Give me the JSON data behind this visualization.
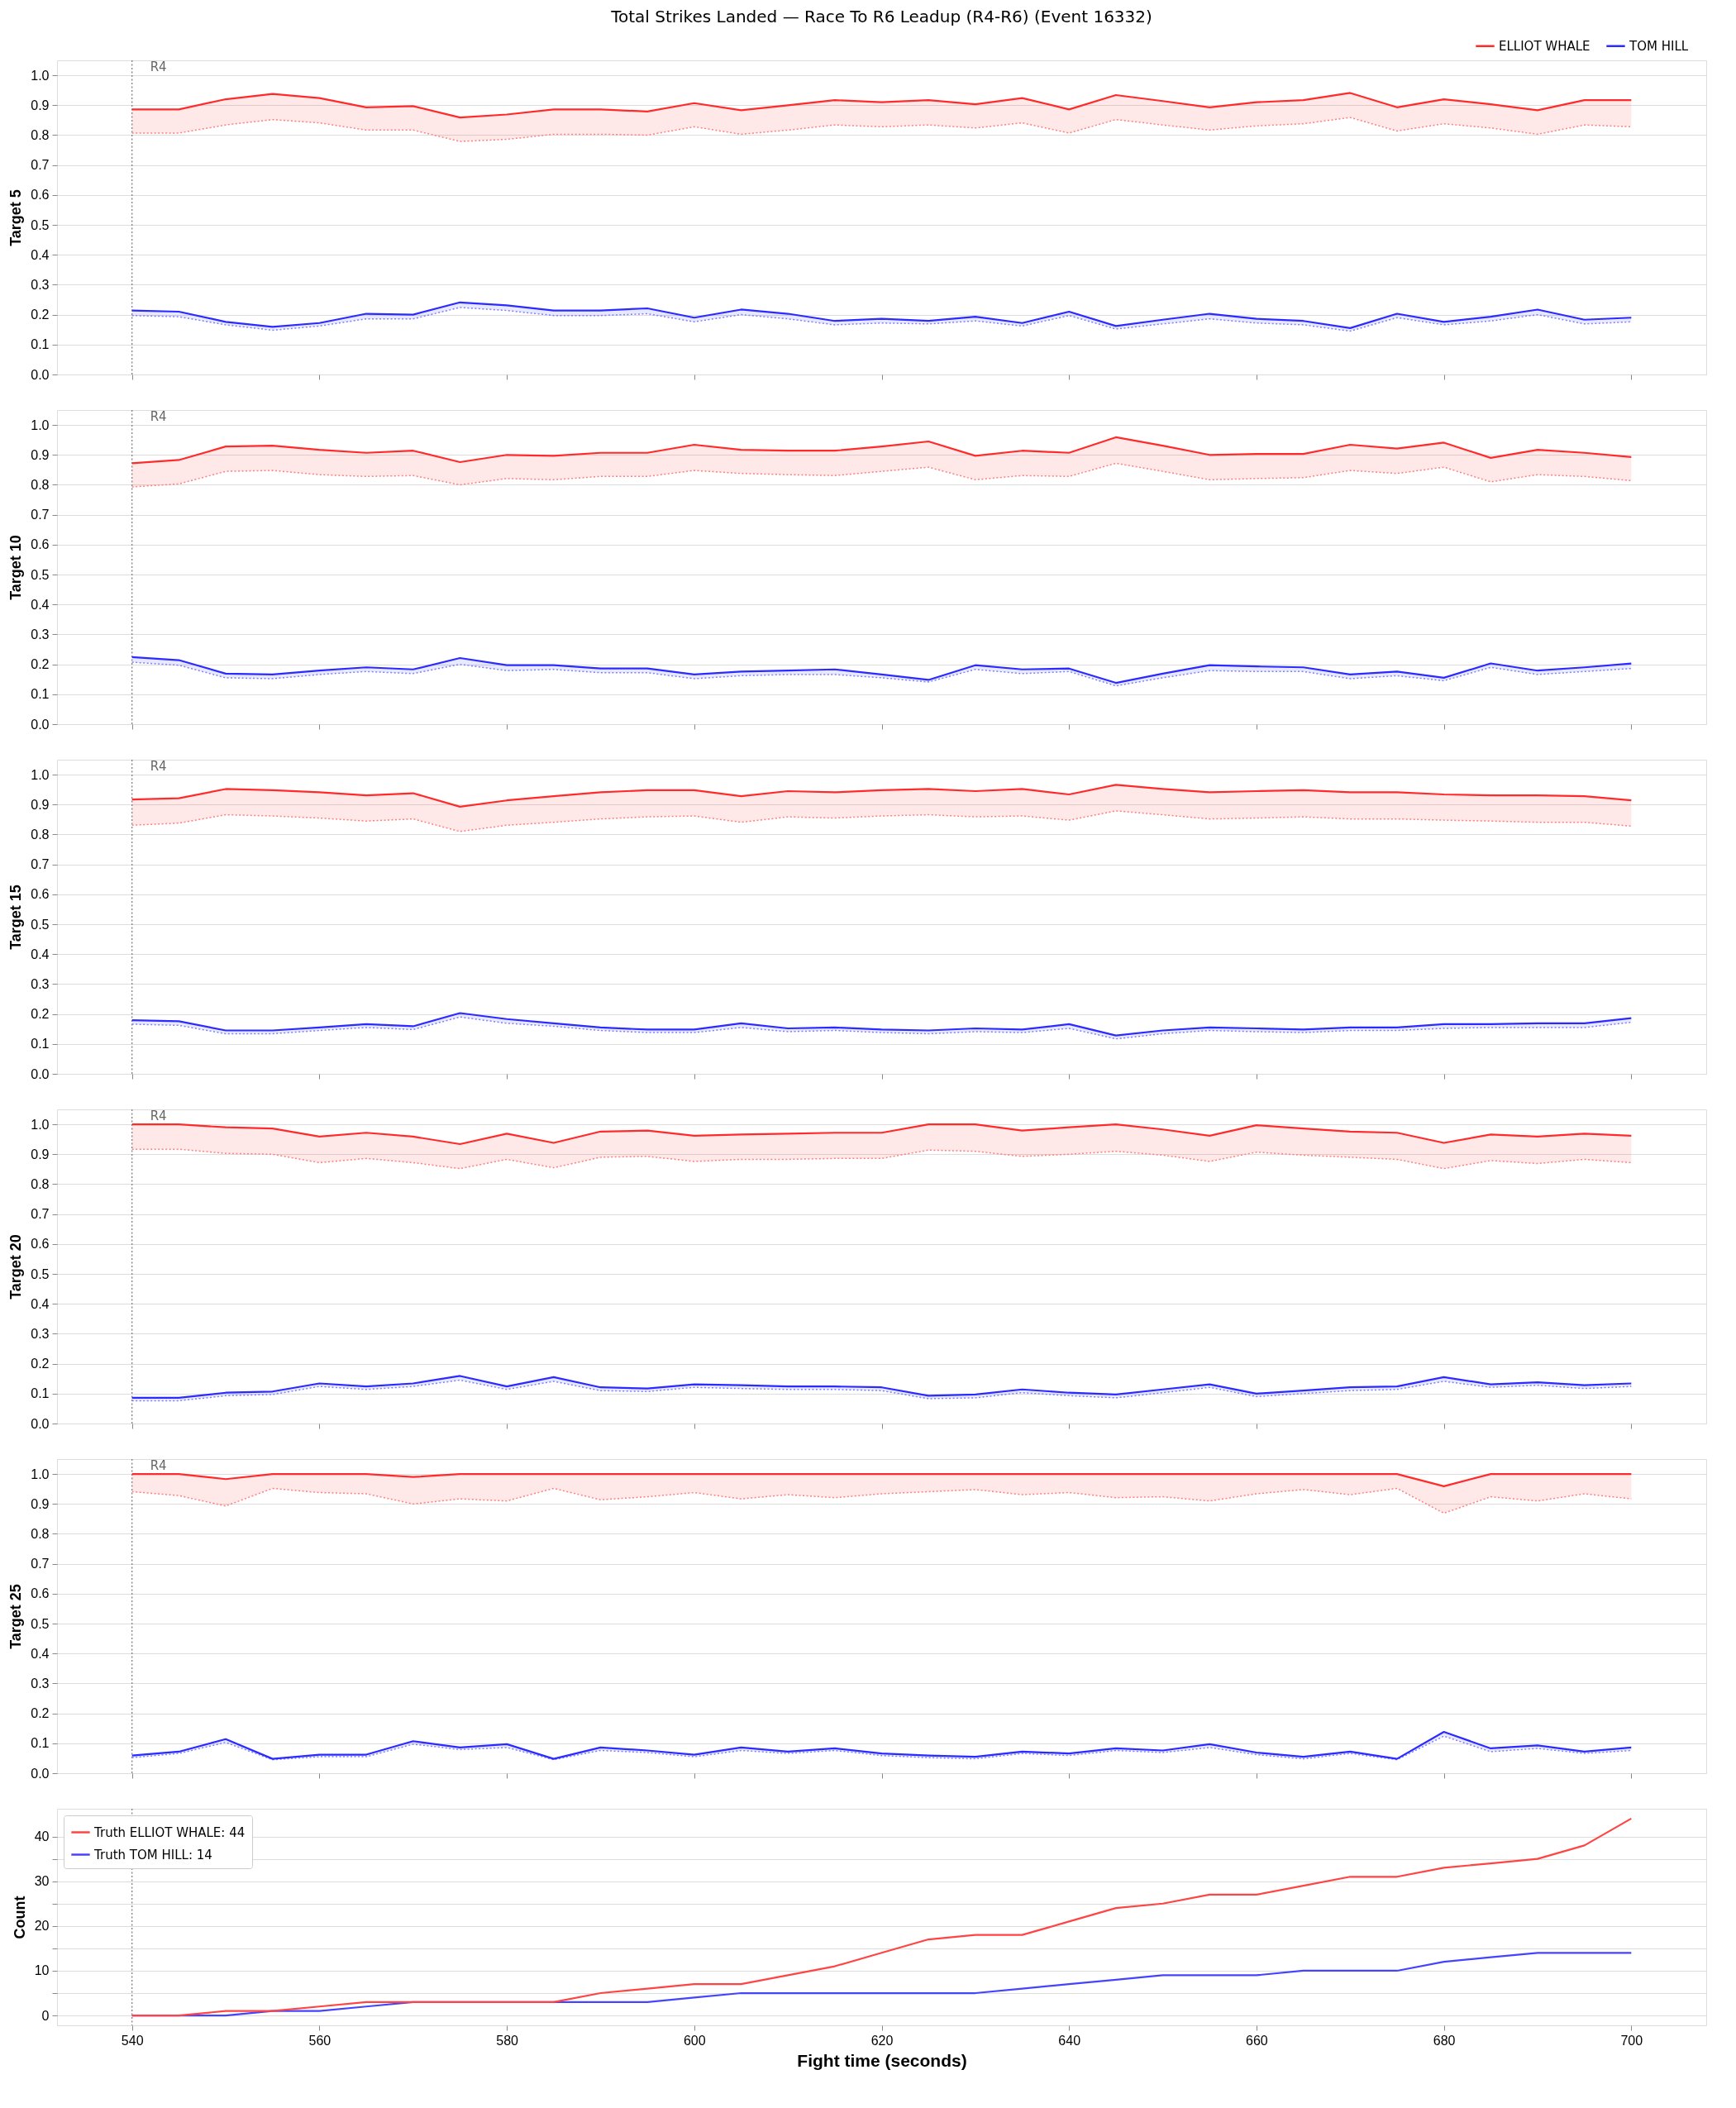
{
  "chart_data": [
    {
      "type": "line",
      "title": "Total Strikes Landed — Race To R6 Leadup (R4-R6) (Event 16332)",
      "ylabel": "Target 5",
      "x": [
        540,
        545,
        550,
        555,
        560,
        565,
        570,
        575,
        580,
        585,
        590,
        595,
        600,
        605,
        610,
        615,
        620,
        625,
        630,
        635,
        640,
        645,
        650,
        655,
        660,
        665,
        670,
        675,
        680,
        685,
        690,
        695,
        700
      ],
      "xlim": [
        532,
        708
      ],
      "xticks": [
        540,
        560,
        580,
        600,
        620,
        640,
        660,
        680,
        700
      ],
      "ylim": [
        0,
        1.05
      ],
      "yticks": [
        {
          "value": 0,
          "label": "0.0"
        },
        0.1,
        0.2,
        0.3,
        0.4,
        0.5,
        0.6,
        0.7,
        0.8,
        0.9,
        {
          "value": 1,
          "label": "1.0"
        }
      ],
      "tick_labels": "y",
      "grid": "y",
      "legend": "top right",
      "line_style": "solid",
      "ref_lines": [
        {
          "axis": "x",
          "value": 540,
          "label": "R4",
          "color": "#808080",
          "line_style": "dotted"
        }
      ],
      "series": [
        {
          "name": "ELLIOT WHALE",
          "color": "#ff2b2b",
          "values": [
            0.886,
            0.886,
            0.92,
            0.938,
            0.924,
            0.893,
            0.897,
            0.859,
            0.869,
            0.886,
            0.886,
            0.879,
            0.907,
            0.883,
            0.9,
            0.917,
            0.91,
            0.917,
            0.903,
            0.924,
            0.886,
            0.934,
            0.914,
            0.893,
            0.91,
            0.917,
            0.941,
            0.893,
            0.92,
            0.903,
            0.883,
            0.917,
            0.917
          ],
          "lower": [
            0.807,
            0.807,
            0.834,
            0.852,
            0.841,
            0.817,
            0.817,
            0.779,
            0.786,
            0.803,
            0.803,
            0.8,
            0.828,
            0.803,
            0.817,
            0.834,
            0.828,
            0.834,
            0.824,
            0.841,
            0.807,
            0.852,
            0.834,
            0.817,
            0.831,
            0.838,
            0.859,
            0.814,
            0.838,
            0.824,
            0.803,
            0.834,
            0.828
          ],
          "upper": [
            0.886,
            0.886,
            0.92,
            0.938,
            0.924,
            0.893,
            0.897,
            0.859,
            0.869,
            0.886,
            0.886,
            0.879,
            0.907,
            0.883,
            0.9,
            0.917,
            0.91,
            0.917,
            0.903,
            0.924,
            0.886,
            0.934,
            0.914,
            0.893,
            0.91,
            0.917,
            0.941,
            0.893,
            0.92,
            0.903,
            0.883,
            0.917,
            0.917
          ]
        },
        {
          "name": "TOM HILL",
          "color": "#2b2bff",
          "values": [
            0.214,
            0.21,
            0.176,
            0.159,
            0.172,
            0.203,
            0.2,
            0.241,
            0.231,
            0.214,
            0.214,
            0.221,
            0.19,
            0.217,
            0.203,
            0.179,
            0.186,
            0.179,
            0.193,
            0.172,
            0.21,
            0.162,
            0.183,
            0.203,
            0.186,
            0.179,
            0.155,
            0.203,
            0.176,
            0.193,
            0.217,
            0.183,
            0.19
          ],
          "lower": [
            0.197,
            0.193,
            0.166,
            0.148,
            0.162,
            0.186,
            0.186,
            0.224,
            0.214,
            0.197,
            0.197,
            0.203,
            0.176,
            0.2,
            0.186,
            0.166,
            0.172,
            0.169,
            0.179,
            0.162,
            0.197,
            0.152,
            0.169,
            0.186,
            0.172,
            0.166,
            0.145,
            0.19,
            0.166,
            0.179,
            0.2,
            0.169,
            0.176
          ],
          "upper": [
            0.214,
            0.21,
            0.176,
            0.159,
            0.172,
            0.203,
            0.2,
            0.241,
            0.231,
            0.214,
            0.214,
            0.221,
            0.19,
            0.217,
            0.203,
            0.179,
            0.186,
            0.179,
            0.193,
            0.172,
            0.21,
            0.162,
            0.183,
            0.203,
            0.186,
            0.179,
            0.155,
            0.203,
            0.176,
            0.193,
            0.217,
            0.183,
            0.19
          ]
        },
        {
          "color": "#ff7f7f",
          "line_style": "dotted",
          "values": [
            0.807,
            0.807,
            0.834,
            0.852,
            0.841,
            0.817,
            0.817,
            0.779,
            0.786,
            0.803,
            0.803,
            0.8,
            0.828,
            0.803,
            0.817,
            0.834,
            0.828,
            0.834,
            0.824,
            0.841,
            0.807,
            0.852,
            0.834,
            0.817,
            0.831,
            0.838,
            0.859,
            0.814,
            0.838,
            0.824,
            0.803,
            0.834,
            0.828
          ]
        },
        {
          "color": "#7f7fff",
          "line_style": "dotted",
          "values": [
            0.197,
            0.193,
            0.166,
            0.148,
            0.162,
            0.186,
            0.186,
            0.224,
            0.214,
            0.197,
            0.197,
            0.203,
            0.176,
            0.2,
            0.186,
            0.166,
            0.172,
            0.169,
            0.179,
            0.162,
            0.197,
            0.152,
            0.169,
            0.186,
            0.172,
            0.166,
            0.145,
            0.19,
            0.166,
            0.179,
            0.2,
            0.169,
            0.176
          ]
        }
      ]
    },
    {
      "type": "line",
      "ylabel": "Target 10",
      "x": [
        540,
        545,
        550,
        555,
        560,
        565,
        570,
        575,
        580,
        585,
        590,
        595,
        600,
        605,
        610,
        615,
        620,
        625,
        630,
        635,
        640,
        645,
        650,
        655,
        660,
        665,
        670,
        675,
        680,
        685,
        690,
        695,
        700
      ],
      "xlim": [
        532,
        708
      ],
      "xticks": [
        540,
        560,
        580,
        600,
        620,
        640,
        660,
        680,
        700
      ],
      "ylim": [
        0,
        1.05
      ],
      "yticks": [
        {
          "value": 0,
          "label": "0.0"
        },
        0.1,
        0.2,
        0.3,
        0.4,
        0.5,
        0.6,
        0.7,
        0.8,
        0.9,
        {
          "value": 1,
          "label": "1.0"
        }
      ],
      "tick_labels": "y",
      "grid": "y",
      "line_style": "solid",
      "ref_lines": [
        {
          "axis": "x",
          "value": 540,
          "label": "R4",
          "color": "#808080",
          "line_style": "dotted"
        }
      ],
      "series": [
        {
          "color": "#ff2b2b",
          "values": [
            0.872,
            0.883,
            0.928,
            0.931,
            0.917,
            0.907,
            0.914,
            0.876,
            0.9,
            0.897,
            0.907,
            0.907,
            0.934,
            0.917,
            0.914,
            0.914,
            0.928,
            0.945,
            0.897,
            0.914,
            0.907,
            0.959,
            0.931,
            0.9,
            0.903,
            0.903,
            0.934,
            0.921,
            0.941,
            0.89,
            0.917,
            0.907,
            0.893
          ],
          "lower": [
            0.793,
            0.803,
            0.845,
            0.848,
            0.834,
            0.828,
            0.831,
            0.8,
            0.821,
            0.817,
            0.828,
            0.828,
            0.848,
            0.838,
            0.834,
            0.831,
            0.845,
            0.859,
            0.817,
            0.831,
            0.828,
            0.872,
            0.845,
            0.817,
            0.821,
            0.824,
            0.848,
            0.838,
            0.859,
            0.81,
            0.834,
            0.828,
            0.814
          ],
          "upper": [
            0.872,
            0.883,
            0.928,
            0.931,
            0.917,
            0.907,
            0.914,
            0.876,
            0.9,
            0.897,
            0.907,
            0.907,
            0.934,
            0.917,
            0.914,
            0.914,
            0.928,
            0.945,
            0.897,
            0.914,
            0.907,
            0.959,
            0.931,
            0.9,
            0.903,
            0.903,
            0.934,
            0.921,
            0.941,
            0.89,
            0.917,
            0.907,
            0.893
          ]
        },
        {
          "color": "#2b2bff",
          "values": [
            0.224,
            0.214,
            0.169,
            0.166,
            0.179,
            0.19,
            0.183,
            0.221,
            0.197,
            0.197,
            0.186,
            0.186,
            0.166,
            0.176,
            0.179,
            0.183,
            0.166,
            0.148,
            0.197,
            0.183,
            0.186,
            0.138,
            0.169,
            0.197,
            0.193,
            0.19,
            0.166,
            0.176,
            0.155,
            0.203,
            0.179,
            0.19,
            0.203
          ],
          "lower": [
            0.207,
            0.197,
            0.155,
            0.152,
            0.166,
            0.176,
            0.169,
            0.2,
            0.179,
            0.183,
            0.172,
            0.172,
            0.152,
            0.162,
            0.166,
            0.166,
            0.155,
            0.141,
            0.183,
            0.169,
            0.176,
            0.128,
            0.155,
            0.179,
            0.176,
            0.176,
            0.152,
            0.162,
            0.145,
            0.19,
            0.166,
            0.176,
            0.186
          ],
          "upper": [
            0.224,
            0.214,
            0.169,
            0.166,
            0.179,
            0.19,
            0.183,
            0.221,
            0.197,
            0.197,
            0.186,
            0.186,
            0.166,
            0.176,
            0.179,
            0.183,
            0.166,
            0.148,
            0.197,
            0.183,
            0.186,
            0.138,
            0.169,
            0.197,
            0.193,
            0.19,
            0.166,
            0.176,
            0.155,
            0.203,
            0.179,
            0.19,
            0.203
          ]
        },
        {
          "color": "#ff7f7f",
          "line_style": "dotted",
          "values": [
            0.793,
            0.803,
            0.845,
            0.848,
            0.834,
            0.828,
            0.831,
            0.8,
            0.821,
            0.817,
            0.828,
            0.828,
            0.848,
            0.838,
            0.834,
            0.831,
            0.845,
            0.859,
            0.817,
            0.831,
            0.828,
            0.872,
            0.845,
            0.817,
            0.821,
            0.824,
            0.848,
            0.838,
            0.859,
            0.81,
            0.834,
            0.828,
            0.814
          ]
        },
        {
          "color": "#7f7fff",
          "line_style": "dotted",
          "values": [
            0.207,
            0.197,
            0.155,
            0.152,
            0.166,
            0.176,
            0.169,
            0.2,
            0.179,
            0.183,
            0.172,
            0.172,
            0.152,
            0.162,
            0.166,
            0.166,
            0.155,
            0.141,
            0.183,
            0.169,
            0.176,
            0.128,
            0.155,
            0.179,
            0.176,
            0.176,
            0.152,
            0.162,
            0.145,
            0.19,
            0.166,
            0.176,
            0.186
          ]
        }
      ]
    },
    {
      "type": "line",
      "ylabel": "Target 15",
      "x": [
        540,
        545,
        550,
        555,
        560,
        565,
        570,
        575,
        580,
        585,
        590,
        595,
        600,
        605,
        610,
        615,
        620,
        625,
        630,
        635,
        640,
        645,
        650,
        655,
        660,
        665,
        670,
        675,
        680,
        685,
        690,
        695,
        700
      ],
      "xlim": [
        532,
        708
      ],
      "xticks": [
        540,
        560,
        580,
        600,
        620,
        640,
        660,
        680,
        700
      ],
      "ylim": [
        0,
        1.05
      ],
      "yticks": [
        {
          "value": 0,
          "label": "0.0"
        },
        0.1,
        0.2,
        0.3,
        0.4,
        0.5,
        0.6,
        0.7,
        0.8,
        0.9,
        {
          "value": 1,
          "label": "1.0"
        }
      ],
      "tick_labels": "y",
      "grid": "y",
      "line_style": "solid",
      "ref_lines": [
        {
          "axis": "x",
          "value": 540,
          "label": "R4",
          "color": "#808080",
          "line_style": "dotted"
        }
      ],
      "series": [
        {
          "color": "#ff2b2b",
          "values": [
            0.917,
            0.921,
            0.952,
            0.948,
            0.941,
            0.931,
            0.938,
            0.893,
            0.914,
            0.928,
            0.941,
            0.948,
            0.948,
            0.928,
            0.945,
            0.941,
            0.948,
            0.952,
            0.945,
            0.952,
            0.934,
            0.966,
            0.952,
            0.941,
            0.945,
            0.948,
            0.941,
            0.941,
            0.934,
            0.931,
            0.931,
            0.928,
            0.914
          ],
          "lower": [
            0.831,
            0.838,
            0.866,
            0.862,
            0.855,
            0.845,
            0.852,
            0.81,
            0.831,
            0.841,
            0.852,
            0.859,
            0.862,
            0.841,
            0.859,
            0.855,
            0.862,
            0.866,
            0.859,
            0.862,
            0.848,
            0.879,
            0.866,
            0.852,
            0.855,
            0.859,
            0.852,
            0.852,
            0.848,
            0.845,
            0.841,
            0.841,
            0.828
          ],
          "upper": [
            0.917,
            0.921,
            0.952,
            0.948,
            0.941,
            0.931,
            0.938,
            0.893,
            0.914,
            0.928,
            0.941,
            0.948,
            0.948,
            0.928,
            0.945,
            0.941,
            0.948,
            0.952,
            0.945,
            0.952,
            0.934,
            0.966,
            0.952,
            0.941,
            0.945,
            0.948,
            0.941,
            0.941,
            0.934,
            0.931,
            0.931,
            0.928,
            0.914
          ]
        },
        {
          "color": "#2b2bff",
          "values": [
            0.179,
            0.176,
            0.145,
            0.145,
            0.155,
            0.166,
            0.159,
            0.203,
            0.183,
            0.169,
            0.155,
            0.148,
            0.148,
            0.169,
            0.152,
            0.155,
            0.148,
            0.145,
            0.152,
            0.148,
            0.166,
            0.128,
            0.145,
            0.155,
            0.152,
            0.148,
            0.155,
            0.155,
            0.166,
            0.166,
            0.169,
            0.169,
            0.186
          ],
          "lower": [
            0.166,
            0.162,
            0.134,
            0.134,
            0.145,
            0.155,
            0.148,
            0.19,
            0.169,
            0.159,
            0.145,
            0.138,
            0.138,
            0.155,
            0.141,
            0.145,
            0.138,
            0.134,
            0.141,
            0.138,
            0.152,
            0.117,
            0.134,
            0.145,
            0.141,
            0.138,
            0.145,
            0.145,
            0.152,
            0.155,
            0.155,
            0.155,
            0.172
          ],
          "upper": [
            0.179,
            0.176,
            0.145,
            0.145,
            0.155,
            0.166,
            0.159,
            0.203,
            0.183,
            0.169,
            0.155,
            0.148,
            0.148,
            0.169,
            0.152,
            0.155,
            0.148,
            0.145,
            0.152,
            0.148,
            0.166,
            0.128,
            0.145,
            0.155,
            0.152,
            0.148,
            0.155,
            0.155,
            0.166,
            0.166,
            0.169,
            0.169,
            0.186
          ]
        },
        {
          "color": "#ff7f7f",
          "line_style": "dotted",
          "values": [
            0.831,
            0.838,
            0.866,
            0.862,
            0.855,
            0.845,
            0.852,
            0.81,
            0.831,
            0.841,
            0.852,
            0.859,
            0.862,
            0.841,
            0.859,
            0.855,
            0.862,
            0.866,
            0.859,
            0.862,
            0.848,
            0.879,
            0.866,
            0.852,
            0.855,
            0.859,
            0.852,
            0.852,
            0.848,
            0.845,
            0.841,
            0.841,
            0.828
          ]
        },
        {
          "color": "#7f7fff",
          "line_style": "dotted",
          "values": [
            0.166,
            0.162,
            0.134,
            0.134,
            0.145,
            0.155,
            0.148,
            0.19,
            0.169,
            0.159,
            0.145,
            0.138,
            0.138,
            0.155,
            0.141,
            0.145,
            0.138,
            0.134,
            0.141,
            0.138,
            0.152,
            0.117,
            0.134,
            0.145,
            0.141,
            0.138,
            0.145,
            0.145,
            0.152,
            0.155,
            0.155,
            0.155,
            0.172
          ]
        }
      ]
    },
    {
      "type": "line",
      "ylabel": "Target 20",
      "x": [
        540,
        545,
        550,
        555,
        560,
        565,
        570,
        575,
        580,
        585,
        590,
        595,
        600,
        605,
        610,
        615,
        620,
        625,
        630,
        635,
        640,
        645,
        650,
        655,
        660,
        665,
        670,
        675,
        680,
        685,
        690,
        695,
        700
      ],
      "xlim": [
        532,
        708
      ],
      "xticks": [
        540,
        560,
        580,
        600,
        620,
        640,
        660,
        680,
        700
      ],
      "ylim": [
        0,
        1.05
      ],
      "yticks": [
        {
          "value": 0,
          "label": "0.0"
        },
        0.1,
        0.2,
        0.3,
        0.4,
        0.5,
        0.6,
        0.7,
        0.8,
        0.9,
        {
          "value": 1,
          "label": "1.0"
        }
      ],
      "tick_labels": "y",
      "grid": "y",
      "line_style": "solid",
      "ref_lines": [
        {
          "axis": "x",
          "value": 540,
          "label": "R4",
          "color": "#808080",
          "line_style": "dotted"
        }
      ],
      "series": [
        {
          "color": "#ff2b2b",
          "values": [
            1,
            1,
            0.99,
            0.986,
            0.959,
            0.972,
            0.959,
            0.934,
            0.969,
            0.938,
            0.976,
            0.979,
            0.962,
            0.966,
            0.969,
            0.972,
            0.972,
            1,
            1,
            0.979,
            0.99,
            1,
            0.983,
            0.962,
            0.997,
            0.986,
            0.976,
            0.972,
            0.938,
            0.966,
            0.959,
            0.969,
            0.962
          ],
          "lower": [
            0.917,
            0.917,
            0.903,
            0.9,
            0.872,
            0.886,
            0.872,
            0.852,
            0.883,
            0.855,
            0.89,
            0.893,
            0.876,
            0.883,
            0.883,
            0.886,
            0.886,
            0.914,
            0.91,
            0.893,
            0.9,
            0.91,
            0.897,
            0.876,
            0.907,
            0.897,
            0.89,
            0.883,
            0.852,
            0.879,
            0.869,
            0.883,
            0.872
          ],
          "upper": [
            1,
            1,
            0.99,
            0.986,
            0.959,
            0.972,
            0.959,
            0.934,
            0.969,
            0.938,
            0.976,
            0.979,
            0.962,
            0.966,
            0.969,
            0.972,
            0.972,
            1,
            1,
            0.979,
            0.99,
            1,
            0.983,
            0.962,
            0.997,
            0.986,
            0.976,
            0.972,
            0.938,
            0.966,
            0.959,
            0.969,
            0.962
          ]
        },
        {
          "color": "#2b2bff",
          "values": [
            0.086,
            0.086,
            0.103,
            0.107,
            0.134,
            0.124,
            0.134,
            0.159,
            0.124,
            0.155,
            0.121,
            0.117,
            0.131,
            0.128,
            0.124,
            0.124,
            0.121,
            0.093,
            0.097,
            0.114,
            0.103,
            0.097,
            0.114,
            0.131,
            0.1,
            0.11,
            0.121,
            0.124,
            0.155,
            0.131,
            0.138,
            0.128,
            0.134
          ],
          "lower": [
            0.076,
            0.076,
            0.093,
            0.097,
            0.124,
            0.114,
            0.124,
            0.145,
            0.114,
            0.141,
            0.11,
            0.107,
            0.121,
            0.117,
            0.114,
            0.114,
            0.11,
            0.083,
            0.086,
            0.103,
            0.093,
            0.086,
            0.103,
            0.121,
            0.09,
            0.1,
            0.11,
            0.114,
            0.141,
            0.121,
            0.128,
            0.117,
            0.124
          ],
          "upper": [
            0.086,
            0.086,
            0.103,
            0.107,
            0.134,
            0.124,
            0.134,
            0.159,
            0.124,
            0.155,
            0.121,
            0.117,
            0.131,
            0.128,
            0.124,
            0.124,
            0.121,
            0.093,
            0.097,
            0.114,
            0.103,
            0.097,
            0.114,
            0.131,
            0.1,
            0.11,
            0.121,
            0.124,
            0.155,
            0.131,
            0.138,
            0.128,
            0.134
          ]
        },
        {
          "color": "#ff7f7f",
          "line_style": "dotted",
          "values": [
            0.917,
            0.917,
            0.903,
            0.9,
            0.872,
            0.886,
            0.872,
            0.852,
            0.883,
            0.855,
            0.89,
            0.893,
            0.876,
            0.883,
            0.883,
            0.886,
            0.886,
            0.914,
            0.91,
            0.893,
            0.9,
            0.91,
            0.897,
            0.876,
            0.907,
            0.897,
            0.89,
            0.883,
            0.852,
            0.879,
            0.869,
            0.883,
            0.872
          ]
        },
        {
          "color": "#7f7fff",
          "line_style": "dotted",
          "values": [
            0.076,
            0.076,
            0.093,
            0.097,
            0.124,
            0.114,
            0.124,
            0.145,
            0.114,
            0.141,
            0.11,
            0.107,
            0.121,
            0.117,
            0.114,
            0.114,
            0.11,
            0.083,
            0.086,
            0.103,
            0.093,
            0.086,
            0.103,
            0.121,
            0.09,
            0.1,
            0.11,
            0.114,
            0.141,
            0.121,
            0.128,
            0.117,
            0.124
          ]
        }
      ]
    },
    {
      "type": "line",
      "ylabel": "Target 25",
      "x": [
        540,
        545,
        550,
        555,
        560,
        565,
        570,
        575,
        580,
        585,
        590,
        595,
        600,
        605,
        610,
        615,
        620,
        625,
        630,
        635,
        640,
        645,
        650,
        655,
        660,
        665,
        670,
        675,
        680,
        685,
        690,
        695,
        700
      ],
      "xlim": [
        532,
        708
      ],
      "xticks": [
        540,
        560,
        580,
        600,
        620,
        640,
        660,
        680,
        700
      ],
      "ylim": [
        0,
        1.05
      ],
      "yticks": [
        {
          "value": 0,
          "label": "0.0"
        },
        0.1,
        0.2,
        0.3,
        0.4,
        0.5,
        0.6,
        0.7,
        0.8,
        0.9,
        {
          "value": 1,
          "label": "1.0"
        }
      ],
      "tick_labels": "y",
      "grid": "y",
      "line_style": "solid",
      "ref_lines": [
        {
          "axis": "x",
          "value": 540,
          "label": "R4",
          "color": "#808080",
          "line_style": "dotted"
        }
      ],
      "series": [
        {
          "color": "#ff2b2b",
          "values": [
            1,
            1,
            0.983,
            1,
            1,
            1,
            0.99,
            1,
            1,
            1,
            1,
            1,
            1,
            1,
            1,
            1,
            1,
            1,
            1,
            1,
            1,
            1,
            1,
            1,
            1,
            1,
            1,
            1,
            0.959,
            1,
            1,
            1,
            1
          ],
          "lower": [
            0.941,
            0.928,
            0.893,
            0.952,
            0.938,
            0.934,
            0.9,
            0.917,
            0.91,
            0.952,
            0.914,
            0.924,
            0.938,
            0.917,
            0.931,
            0.921,
            0.934,
            0.941,
            0.948,
            0.931,
            0.938,
            0.921,
            0.924,
            0.91,
            0.934,
            0.948,
            0.931,
            0.952,
            0.869,
            0.924,
            0.91,
            0.934,
            0.917
          ],
          "upper": [
            1,
            1,
            0.983,
            1,
            1,
            1,
            0.99,
            1,
            1,
            1,
            1,
            1,
            1,
            1,
            1,
            1,
            1,
            1,
            1,
            1,
            1,
            1,
            1,
            1,
            1,
            1,
            1,
            1,
            0.959,
            1,
            1,
            1,
            1
          ]
        },
        {
          "color": "#2b2bff",
          "values": [
            0.059,
            0.072,
            0.114,
            0.048,
            0.062,
            0.062,
            0.107,
            0.086,
            0.097,
            0.048,
            0.086,
            0.076,
            0.062,
            0.086,
            0.072,
            0.083,
            0.066,
            0.059,
            0.055,
            0.072,
            0.066,
            0.083,
            0.076,
            0.097,
            0.069,
            0.055,
            0.072,
            0.048,
            0.138,
            0.083,
            0.093,
            0.072,
            0.086
          ],
          "lower": [
            0.052,
            0.066,
            0.103,
            0.045,
            0.055,
            0.055,
            0.097,
            0.079,
            0.086,
            0.045,
            0.076,
            0.069,
            0.055,
            0.076,
            0.066,
            0.076,
            0.059,
            0.052,
            0.048,
            0.066,
            0.059,
            0.076,
            0.069,
            0.086,
            0.062,
            0.048,
            0.066,
            0.045,
            0.124,
            0.072,
            0.083,
            0.066,
            0.076
          ],
          "upper": [
            0.059,
            0.072,
            0.114,
            0.048,
            0.062,
            0.062,
            0.107,
            0.086,
            0.097,
            0.048,
            0.086,
            0.076,
            0.062,
            0.086,
            0.072,
            0.083,
            0.066,
            0.059,
            0.055,
            0.072,
            0.066,
            0.083,
            0.076,
            0.097,
            0.069,
            0.055,
            0.072,
            0.048,
            0.138,
            0.083,
            0.093,
            0.072,
            0.086
          ]
        },
        {
          "color": "#ff7f7f",
          "line_style": "dotted",
          "values": [
            0.941,
            0.928,
            0.893,
            0.952,
            0.938,
            0.934,
            0.9,
            0.917,
            0.91,
            0.952,
            0.914,
            0.924,
            0.938,
            0.917,
            0.931,
            0.921,
            0.934,
            0.941,
            0.948,
            0.931,
            0.938,
            0.921,
            0.924,
            0.91,
            0.934,
            0.948,
            0.931,
            0.952,
            0.869,
            0.924,
            0.91,
            0.934,
            0.917
          ]
        },
        {
          "color": "#7f7fff",
          "line_style": "dotted",
          "values": [
            0.052,
            0.066,
            0.103,
            0.045,
            0.055,
            0.055,
            0.097,
            0.079,
            0.086,
            0.045,
            0.076,
            0.069,
            0.055,
            0.076,
            0.066,
            0.076,
            0.059,
            0.052,
            0.048,
            0.066,
            0.059,
            0.076,
            0.069,
            0.086,
            0.062,
            0.048,
            0.066,
            0.045,
            0.124,
            0.072,
            0.083,
            0.066,
            0.076
          ]
        }
      ]
    },
    {
      "type": "line",
      "ylabel": "Count",
      "xlabel": "Fight time (seconds)",
      "x": [
        540,
        545,
        550,
        555,
        560,
        565,
        570,
        575,
        580,
        585,
        590,
        595,
        600,
        605,
        610,
        615,
        620,
        625,
        630,
        635,
        640,
        645,
        650,
        655,
        660,
        665,
        670,
        675,
        680,
        685,
        690,
        695,
        700
      ],
      "xlim": [
        532,
        708
      ],
      "xticks": [
        540,
        560,
        580,
        600,
        620,
        640,
        660,
        680,
        700
      ],
      "ylim": [
        -2.2,
        46.2
      ],
      "yticks": [
        0,
        {
          "value": 5,
          "label": null
        },
        10,
        {
          "value": 15,
          "label": null
        },
        20,
        {
          "value": 25,
          "label": null
        },
        30,
        {
          "value": 35,
          "label": null
        },
        40
      ],
      "grid": "y",
      "legend": "top left",
      "line_style": "solid",
      "ref_lines": [
        {
          "axis": "x",
          "value": 540,
          "color": "#808080",
          "line_style": "dotted"
        }
      ],
      "series": [
        {
          "name": "Truth ELLIOT WHALE: 44",
          "color": "#ff4444",
          "values": [
            0,
            0,
            1,
            1,
            2,
            3,
            3,
            3,
            3,
            3,
            5,
            6,
            7,
            7,
            9,
            11,
            14,
            17,
            18,
            18,
            21,
            24,
            25,
            27,
            27,
            29,
            31,
            31,
            33,
            34,
            35,
            38,
            44
          ]
        },
        {
          "name": "Truth TOM HILL: 14",
          "color": "#4444ff",
          "values": [
            0,
            0,
            0,
            1,
            1,
            2,
            3,
            3,
            3,
            3,
            3,
            3,
            4,
            5,
            5,
            5,
            5,
            5,
            5,
            6,
            7,
            8,
            9,
            9,
            9,
            10,
            10,
            10,
            12,
            13,
            14,
            14,
            14
          ]
        }
      ]
    }
  ]
}
